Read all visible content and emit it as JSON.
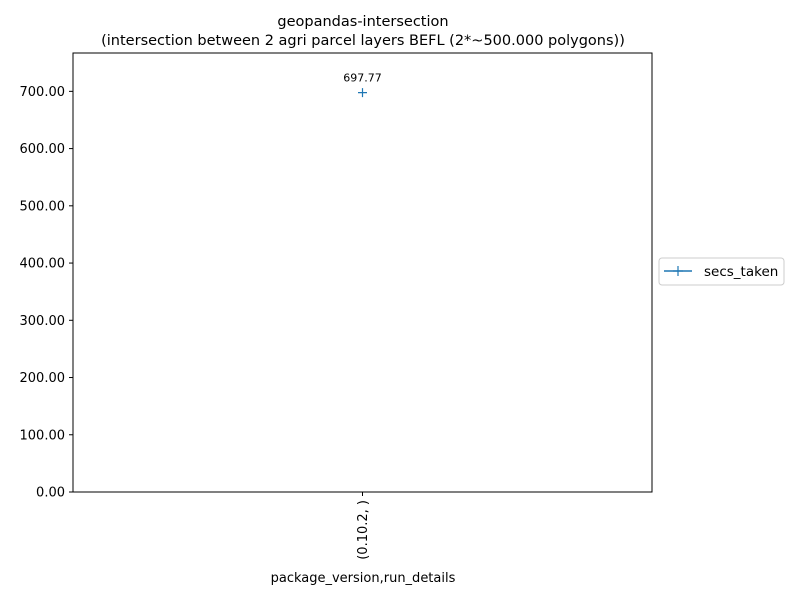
{
  "chart_data": {
    "type": "line",
    "title": "geopandas-intersection",
    "subtitle": "(intersection between 2 agri parcel layers BEFL (2*~500.000 polygons))",
    "xlabel": "package_version,run_details",
    "ylabel": "",
    "categories": [
      "(0.10.2, )"
    ],
    "series": [
      {
        "name": "secs_taken",
        "values": [
          697.77
        ],
        "labels": [
          "697.77"
        ],
        "marker": "+",
        "color": "#1f77b4"
      }
    ],
    "ylim": [
      0,
      767
    ],
    "yticks": [
      0,
      100,
      200,
      300,
      400,
      500,
      600,
      700
    ],
    "ytick_labels": [
      "0.00",
      "100.00",
      "200.00",
      "300.00",
      "400.00",
      "500.00",
      "600.00",
      "700.00"
    ],
    "grid": false,
    "legend": "right, outside"
  }
}
